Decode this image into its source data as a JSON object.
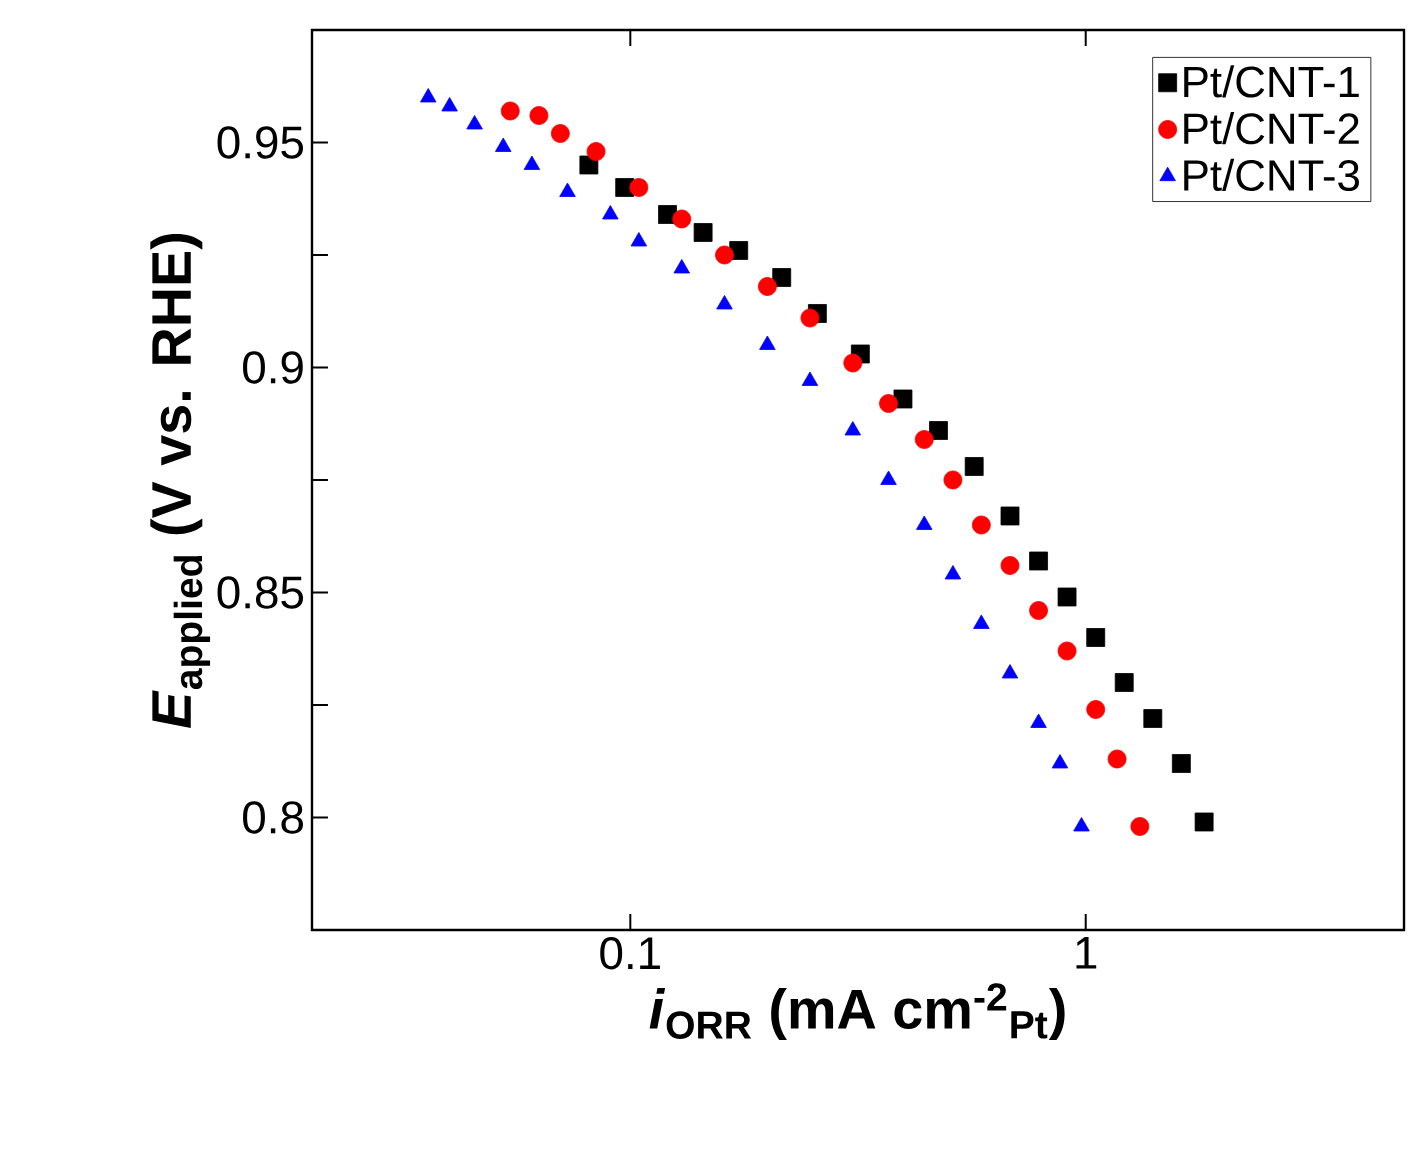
{
  "chart_data": {
    "type": "scatter",
    "xlabel": "*i*$_{ORR}$ (mA cm$^{-2}$$_{Pt}$)",
    "ylabel": "*E*$_{applied}$ (V vs. RHE)",
    "log": "x",
    "xlim": [
      0.02,
      5
    ],
    "xticks": [
      0.1,
      1
    ],
    "ylim": [
      0.775,
      0.975
    ],
    "yticks": [
      0.8,
      {
        "value": 0.825,
        "label": null
      },
      0.85,
      {
        "value": 0.875,
        "label": null
      },
      0.9,
      {
        "value": 0.925,
        "label": null
      },
      0.95
    ],
    "legend": "top right",
    "grid": false,
    "series": [
      {
        "name": "Pt/CNT-1",
        "color": "#000000",
        "marker": "square",
        "x": [
          0.0811,
          0.0972,
          0.1207,
          0.1445,
          0.173,
          0.215,
          0.2575,
          0.32,
          0.397,
          0.475,
          0.569,
          0.682,
          0.788,
          0.91,
          1.052,
          1.215,
          1.404,
          1.622,
          1.82
        ],
        "values": [
          0.945,
          0.94,
          0.934,
          0.93,
          0.926,
          0.92,
          0.912,
          0.903,
          0.893,
          0.886,
          0.878,
          0.867,
          0.857,
          0.849,
          0.84,
          0.83,
          0.822,
          0.812,
          0.799
        ]
      },
      {
        "name": "Pt/CNT-2",
        "color": "#ff0000",
        "marker": "circle",
        "x": [
          0.0545,
          0.063,
          0.0702,
          0.0841,
          0.1044,
          0.1297,
          0.161,
          0.2,
          0.248,
          0.308,
          0.369,
          0.442,
          0.511,
          0.59,
          0.682,
          0.788,
          0.91,
          1.052,
          1.172,
          1.315
        ],
        "values": [
          0.957,
          0.956,
          0.952,
          0.948,
          0.94,
          0.933,
          0.925,
          0.918,
          0.911,
          0.901,
          0.892,
          0.884,
          0.875,
          0.865,
          0.856,
          0.846,
          0.837,
          0.824,
          0.813,
          0.798
        ]
      },
      {
        "name": "Pt/CNT-3",
        "color": "#0000ff",
        "marker": "triangle",
        "x": [
          0.036,
          0.0401,
          0.0455,
          0.0526,
          0.0608,
          0.0728,
          0.0904,
          0.1044,
          0.1297,
          0.161,
          0.2,
          0.248,
          0.308,
          0.369,
          0.442,
          0.511,
          0.59,
          0.682,
          0.788,
          0.878,
          0.979
        ],
        "values": [
          0.96,
          0.958,
          0.954,
          0.949,
          0.945,
          0.939,
          0.934,
          0.928,
          0.922,
          0.914,
          0.905,
          0.897,
          0.886,
          0.875,
          0.865,
          0.854,
          0.843,
          0.832,
          0.821,
          0.812,
          0.798
        ]
      }
    ]
  }
}
